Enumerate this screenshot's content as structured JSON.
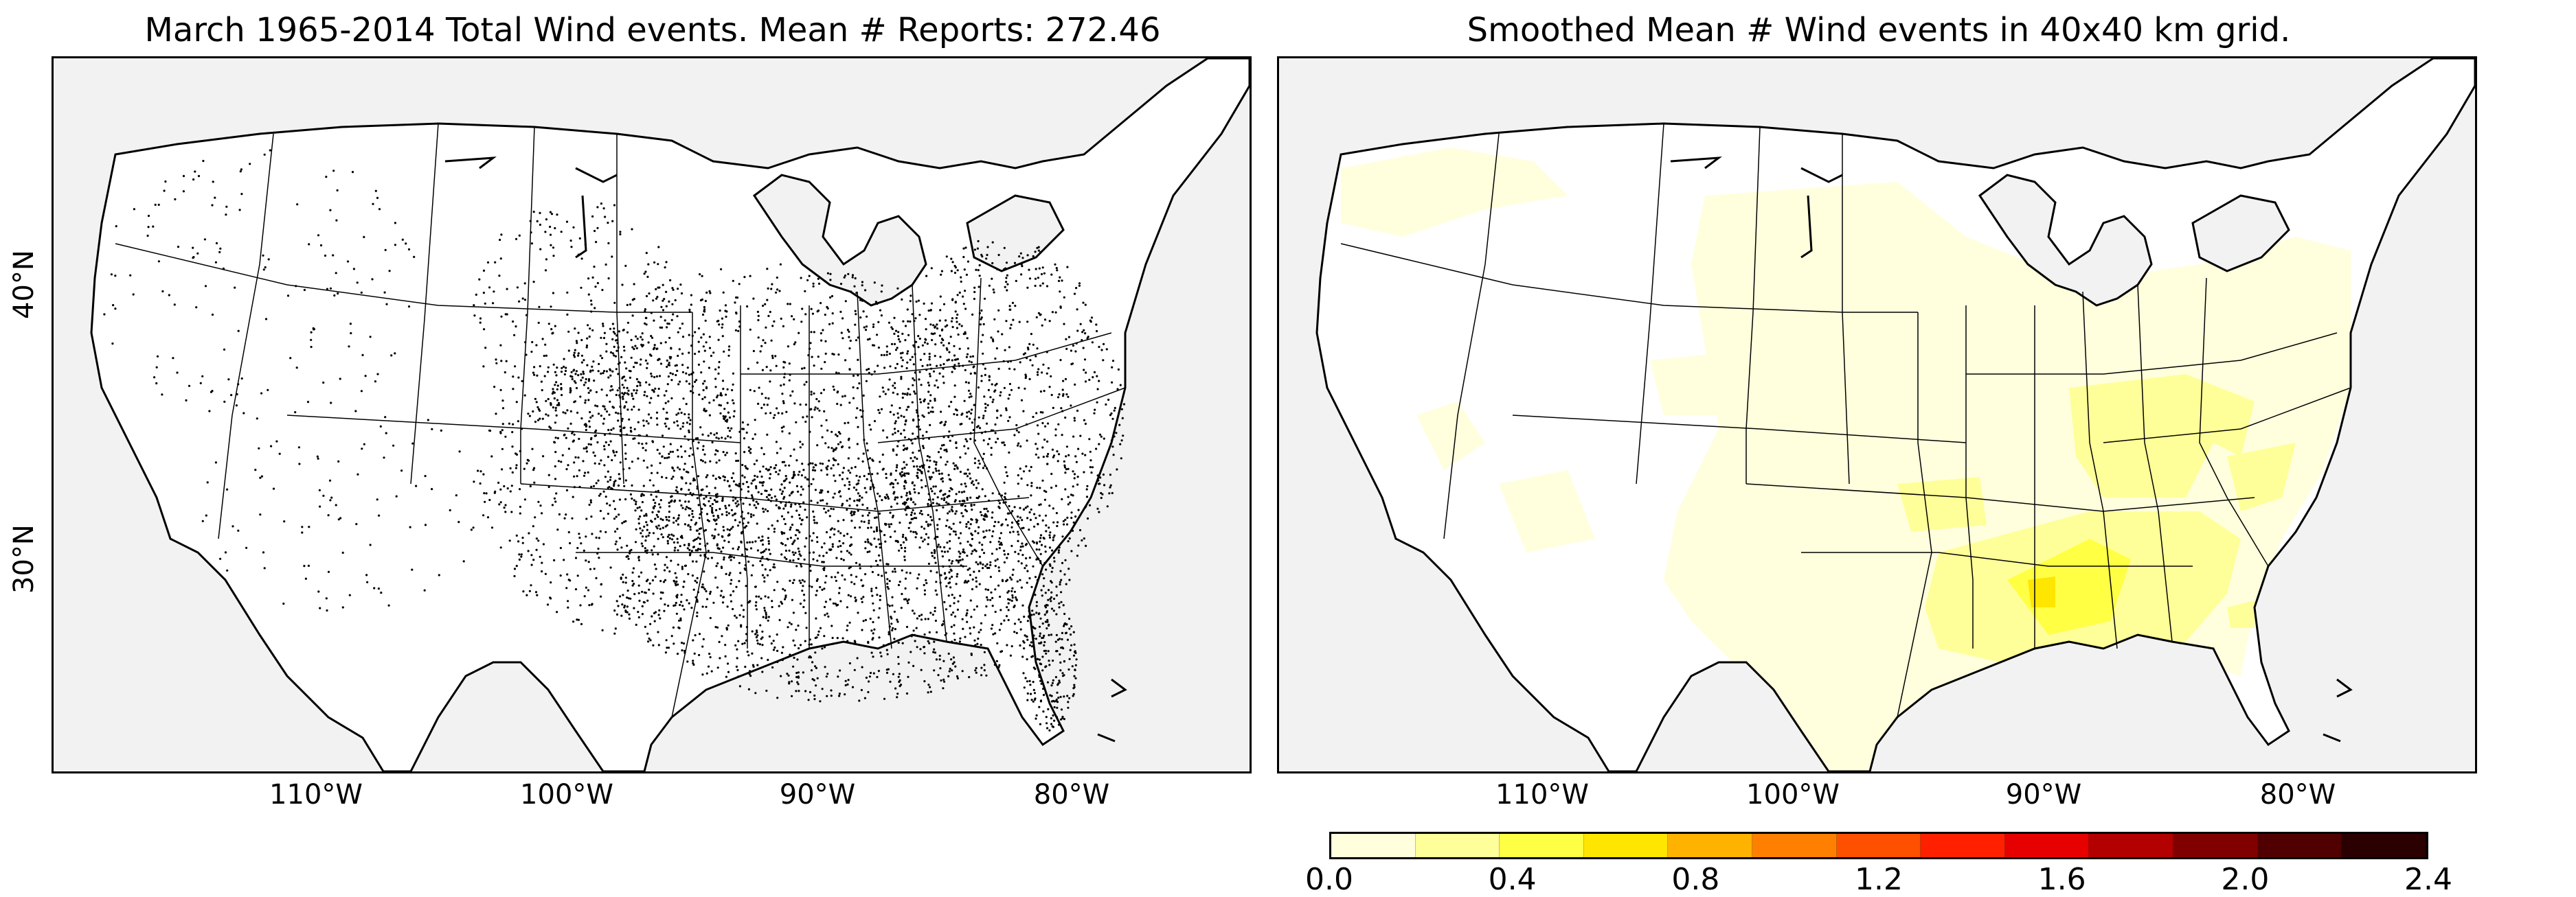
{
  "panels": {
    "left": {
      "title": "March 1965-2014 Total Wind events. Mean # Reports: 272.46"
    },
    "right": {
      "title": "Smoothed Mean # Wind events in 40x40 km grid."
    }
  },
  "axes": {
    "lon_ticks": [
      "110°W",
      "100°W",
      "90°W",
      "80°W"
    ],
    "lat_ticks": [
      "40°N",
      "30°N"
    ]
  },
  "colorbar": {
    "ticks": [
      "0.0",
      "0.4",
      "0.8",
      "1.2",
      "1.6",
      "2.0",
      "2.4"
    ],
    "colors": [
      "#ffffdd",
      "#ffff99",
      "#ffff44",
      "#ffe600",
      "#ffb300",
      "#ff8000",
      "#ff5000",
      "#ff2000",
      "#e60000",
      "#b30000",
      "#800000",
      "#500000",
      "#2a0000"
    ]
  },
  "colors": {
    "ocean": "#f2f2f2",
    "land": "#ffffff",
    "border": "#000000",
    "report_dot": "#000000"
  },
  "chart_data": [
    {
      "type": "scatter",
      "title": "March 1965-2014 Total Wind events. Mean # Reports: 272.46",
      "xlabel": "",
      "ylabel": "",
      "x_ticks": [
        "110°W",
        "100°W",
        "90°W",
        "80°W"
      ],
      "y_ticks": [
        "40°N",
        "30°N"
      ],
      "description_series": "Individual wind event reports across the contiguous United States, densest in the Southeast and Midwest"
    },
    {
      "type": "heatmap",
      "title": "Smoothed Mean # Wind events in 40x40 km grid.",
      "colorbar_range": [
        0.0,
        2.4
      ],
      "colorbar_ticks": [
        0.0,
        0.4,
        0.8,
        1.2,
        1.6,
        2.0,
        2.4
      ],
      "x_ticks": [
        "110°W",
        "100°W",
        "90°W",
        "80°W"
      ]
    }
  ]
}
